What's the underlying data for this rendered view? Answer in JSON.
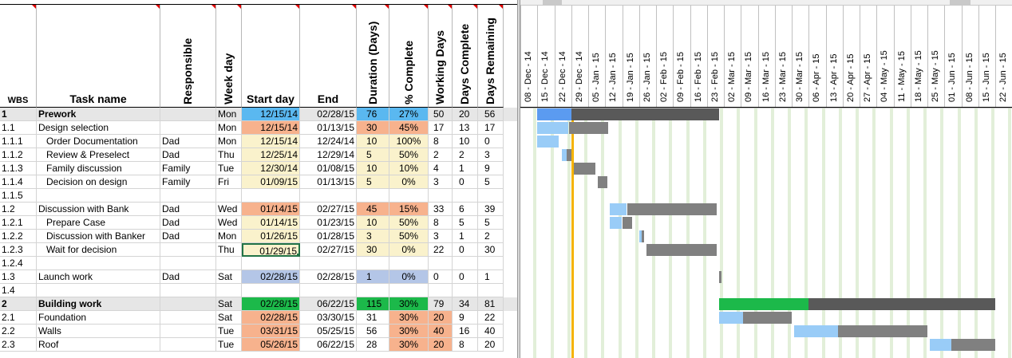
{
  "headers": {
    "wbs": "WBS",
    "task": "Task name",
    "responsible": "Responsible",
    "weekday": "Week day",
    "start": "Start day",
    "end": "End",
    "duration": "Duration (Days)",
    "pct": "% Complete",
    "working": "Working Days",
    "days_complete": "Days Complete",
    "days_remaining": "Days Remaining"
  },
  "timeline_dates": [
    "08 - Dec - 14",
    "15 - Dec - 14",
    "22 - Dec - 14",
    "29 - Dec - 14",
    "05 - Jan - 15",
    "12 - Jan - 15",
    "19 - Jan - 15",
    "26 - Jan - 15",
    "02 - Feb - 15",
    "09 - Feb - 15",
    "16 - Feb - 15",
    "23 - Feb - 15",
    "02 - Mar - 15",
    "09 - Mar - 15",
    "16 - Mar - 15",
    "23 - Mar - 15",
    "30 - Mar - 15",
    "06 - Apr - 15",
    "13 - Apr - 15",
    "20 - Apr - 15",
    "27 - Apr - 15",
    "04 - May - 15",
    "11 - May - 15",
    "18 - May - 15",
    "25 - May - 15",
    "01 - Jun - 15",
    "08 - Jun - 15",
    "15 - Jun - 15",
    "22 - Jun - 15"
  ],
  "rows": [
    {
      "wbs": "1",
      "task": "Prework",
      "resp": "",
      "day": "Mon",
      "start": "12/15/14",
      "end": "02/28/15",
      "dur": "76",
      "pct": "27%",
      "work": "50",
      "done": "20",
      "rem": "56",
      "bold": true,
      "indent": 0,
      "gantt": [
        [
          "12/15/14",
          "12/29/14",
          "blue"
        ],
        [
          "12/29/14",
          "02/28/15",
          "darkgray"
        ]
      ]
    },
    {
      "wbs": "1.1",
      "task": "Design selection",
      "resp": "",
      "day": "Mon",
      "start": "12/15/14",
      "end": "01/13/15",
      "dur": "30",
      "pct": "45%",
      "work": "17",
      "done": "13",
      "rem": "17",
      "bold": false,
      "indent": 0,
      "gantt": [
        [
          "12/15/14",
          "12/28/14",
          "lightblue"
        ],
        [
          "12/28/14",
          "01/13/15",
          "gray"
        ]
      ]
    },
    {
      "wbs": "1.1.1",
      "task": "Order Documentation",
      "resp": "Dad",
      "day": "Mon",
      "start": "12/15/14",
      "end": "12/24/14",
      "dur": "10",
      "pct": "100%",
      "work": "8",
      "done": "10",
      "rem": "0",
      "bold": false,
      "indent": 1,
      "gantt": [
        [
          "12/15/14",
          "12/24/14",
          "lightblue"
        ]
      ]
    },
    {
      "wbs": "1.1.2",
      "task": "Review & Preselect",
      "resp": "Dad",
      "day": "Thu",
      "start": "12/25/14",
      "end": "12/29/14",
      "dur": "5",
      "pct": "50%",
      "work": "2",
      "done": "2",
      "rem": "3",
      "bold": false,
      "indent": 1,
      "gantt": [
        [
          "12/25/14",
          "12/27/14",
          "lightblue"
        ],
        [
          "12/27/14",
          "12/29/14",
          "gray"
        ]
      ]
    },
    {
      "wbs": "1.1.3",
      "task": "Family discussion",
      "resp": "Family",
      "day": "Tue",
      "start": "12/30/14",
      "end": "01/08/15",
      "dur": "10",
      "pct": "10%",
      "work": "4",
      "done": "1",
      "rem": "9",
      "bold": false,
      "indent": 1,
      "gantt": [
        [
          "12/30/14",
          "01/08/15",
          "gray"
        ]
      ]
    },
    {
      "wbs": "1.1.4",
      "task": "Decision on design",
      "resp": "Family",
      "day": "Fri",
      "start": "01/09/15",
      "end": "01/13/15",
      "dur": "5",
      "pct": "0%",
      "work": "3",
      "done": "0",
      "rem": "5",
      "bold": false,
      "indent": 1,
      "gantt": [
        [
          "01/09/15",
          "01/13/15",
          "gray"
        ]
      ]
    },
    {
      "wbs": "1.1.5",
      "task": "",
      "resp": "",
      "day": "",
      "start": "",
      "end": "",
      "dur": "",
      "pct": "",
      "work": "",
      "done": "",
      "rem": "",
      "bold": false,
      "indent": 0,
      "gantt": []
    },
    {
      "wbs": "1.2",
      "task": "Discussion with Bank",
      "resp": "Dad",
      "day": "Wed",
      "start": "01/14/15",
      "end": "02/27/15",
      "dur": "45",
      "pct": "15%",
      "work": "33",
      "done": "6",
      "rem": "39",
      "bold": false,
      "indent": 0,
      "gantt": [
        [
          "01/14/15",
          "01/21/15",
          "lightblue"
        ],
        [
          "01/21/15",
          "02/27/15",
          "gray"
        ]
      ]
    },
    {
      "wbs": "1.2.1",
      "task": "Prepare Case",
      "resp": "Dad",
      "day": "Wed",
      "start": "01/14/15",
      "end": "01/23/15",
      "dur": "10",
      "pct": "50%",
      "work": "8",
      "done": "5",
      "rem": "5",
      "bold": false,
      "indent": 1,
      "gantt": [
        [
          "01/14/15",
          "01/19/15",
          "lightblue"
        ],
        [
          "01/19/15",
          "01/23/15",
          "gray"
        ]
      ]
    },
    {
      "wbs": "1.2.2",
      "task": "Discussion with Banker",
      "resp": "Dad",
      "day": "Mon",
      "start": "01/26/15",
      "end": "01/28/15",
      "dur": "3",
      "pct": "50%",
      "work": "3",
      "done": "1",
      "rem": "2",
      "bold": false,
      "indent": 1,
      "gantt": [
        [
          "01/26/15",
          "01/27/15",
          "lightblue"
        ],
        [
          "01/27/15",
          "01/28/15",
          "gray"
        ]
      ]
    },
    {
      "wbs": "1.2.3",
      "task": "Wait for decision",
      "resp": "",
      "day": "Thu",
      "start": "01/29/15",
      "end": "02/27/15",
      "dur": "30",
      "pct": "0%",
      "work": "22",
      "done": "0",
      "rem": "30",
      "bold": false,
      "indent": 1,
      "gantt": [
        [
          "01/29/15",
          "02/27/15",
          "gray"
        ]
      ]
    },
    {
      "wbs": "1.2.4",
      "task": "",
      "resp": "",
      "day": "",
      "start": "",
      "end": "",
      "dur": "",
      "pct": "",
      "work": "",
      "done": "",
      "rem": "",
      "bold": false,
      "indent": 0,
      "gantt": []
    },
    {
      "wbs": "1.3",
      "task": "Launch work",
      "resp": "Dad",
      "day": "Sat",
      "start": "02/28/15",
      "end": "02/28/15",
      "dur": "1",
      "pct": "0%",
      "work": "0",
      "done": "0",
      "rem": "1",
      "bold": false,
      "indent": 0,
      "gantt": [
        [
          "02/28/15",
          "02/29/15",
          "gray"
        ]
      ]
    },
    {
      "wbs": "1.4",
      "task": "",
      "resp": "",
      "day": "",
      "start": "",
      "end": "",
      "dur": "",
      "pct": "",
      "work": "",
      "done": "",
      "rem": "",
      "bold": false,
      "indent": 0,
      "gantt": []
    },
    {
      "wbs": "2",
      "task": "Building work",
      "resp": "",
      "day": "Sat",
      "start": "02/28/15",
      "end": "06/22/15",
      "dur": "115",
      "pct": "30%",
      "work": "79",
      "done": "34",
      "rem": "81",
      "bold": true,
      "indent": 0,
      "gantt": [
        [
          "02/28/15",
          "04/06/15",
          "green"
        ],
        [
          "04/06/15",
          "06/22/15",
          "darkgray"
        ]
      ]
    },
    {
      "wbs": "2.1",
      "task": "Foundation",
      "resp": "",
      "day": "Sat",
      "start": "02/28/15",
      "end": "03/30/15",
      "dur": "31",
      "pct": "30%",
      "work": "20",
      "done": "9",
      "rem": "22",
      "bold": false,
      "indent": 0,
      "gantt": [
        [
          "02/28/15",
          "03/10/15",
          "lightblue"
        ],
        [
          "03/10/15",
          "03/30/15",
          "gray"
        ]
      ]
    },
    {
      "wbs": "2.2",
      "task": "Walls",
      "resp": "",
      "day": "Tue",
      "start": "03/31/15",
      "end": "05/25/15",
      "dur": "56",
      "pct": "30%",
      "work": "40",
      "done": "16",
      "rem": "40",
      "bold": false,
      "indent": 0,
      "gantt": [
        [
          "03/31/15",
          "04/18/15",
          "lightblue"
        ],
        [
          "04/18/15",
          "05/25/15",
          "gray"
        ]
      ]
    },
    {
      "wbs": "2.3",
      "task": "Roof",
      "resp": "",
      "day": "Tue",
      "start": "05/26/15",
      "end": "06/22/15",
      "dur": "28",
      "pct": "30%",
      "work": "20",
      "done": "8",
      "rem": "20",
      "bold": false,
      "indent": 0,
      "gantt": [
        [
          "05/26/15",
          "06/04/15",
          "lightblue"
        ],
        [
          "06/04/15",
          "06/22/15",
          "gray"
        ]
      ]
    }
  ],
  "colors": {
    "header_blue": "#5ab8f0",
    "salmon": "#f7b28d",
    "cream": "#faf2cc",
    "periwinkle": "#b4c6e7",
    "green": "#1cb94a",
    "bar_blue": "#5b9bf0",
    "bar_lightblue": "#99ccf7",
    "bar_gray": "#808080",
    "bar_darkgray": "#595959",
    "today": "#f5b300"
  },
  "today": "12/29/14"
}
